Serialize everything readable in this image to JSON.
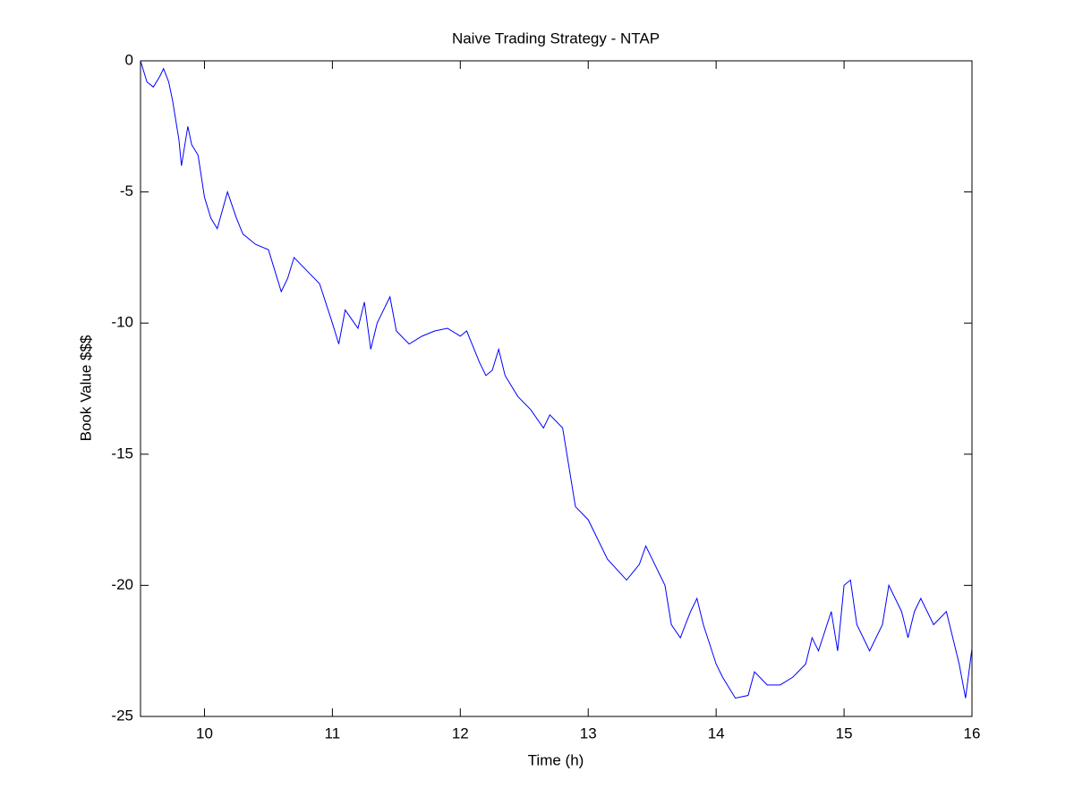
{
  "chart_data": {
    "type": "line",
    "title": "Naive Trading Strategy - NTAP",
    "x_label": "Time (h)",
    "y_label": "Book Value $$$",
    "xlim": [
      9.5,
      16
    ],
    "ylim": [
      -25,
      0
    ],
    "xticks": [
      10,
      11,
      12,
      13,
      14,
      15,
      16
    ],
    "yticks": [
      -25,
      -20,
      -15,
      -10,
      -5,
      0
    ],
    "grid": false,
    "series": [
      {
        "name": "NTAP",
        "color": "#0000ff",
        "x": [
          9.5,
          9.55,
          9.6,
          9.65,
          9.68,
          9.72,
          9.75,
          9.8,
          9.82,
          9.87,
          9.9,
          9.95,
          10.0,
          10.05,
          10.1,
          10.18,
          10.25,
          10.3,
          10.4,
          10.5,
          10.55,
          10.6,
          10.65,
          10.7,
          10.8,
          10.9,
          11.0,
          11.05,
          11.1,
          11.2,
          11.25,
          11.3,
          11.35,
          11.45,
          11.5,
          11.6,
          11.7,
          11.8,
          11.9,
          12.0,
          12.05,
          12.15,
          12.2,
          12.25,
          12.3,
          12.35,
          12.45,
          12.55,
          12.65,
          12.7,
          12.8,
          12.85,
          12.9,
          13.0,
          13.05,
          13.15,
          13.3,
          13.4,
          13.45,
          13.55,
          13.6,
          13.65,
          13.72,
          13.8,
          13.85,
          13.9,
          14.0,
          14.05,
          14.15,
          14.25,
          14.3,
          14.4,
          14.5,
          14.6,
          14.7,
          14.75,
          14.8,
          14.9,
          14.95,
          15.0,
          15.05,
          15.1,
          15.2,
          15.3,
          15.35,
          15.45,
          15.5,
          15.55,
          15.6,
          15.7,
          15.8,
          15.85,
          15.9,
          15.95,
          16.0
        ],
        "values": [
          0,
          -0.8,
          -1.0,
          -0.6,
          -0.3,
          -0.8,
          -1.5,
          -3.0,
          -4.0,
          -2.5,
          -3.2,
          -3.6,
          -5.2,
          -6.0,
          -6.4,
          -5.0,
          -6.0,
          -6.6,
          -7.0,
          -7.2,
          -8.0,
          -8.8,
          -8.3,
          -7.5,
          -8.0,
          -8.5,
          -10.0,
          -10.8,
          -9.5,
          -10.2,
          -9.2,
          -11.0,
          -10.0,
          -9.0,
          -10.3,
          -10.8,
          -10.5,
          -10.3,
          -10.2,
          -10.5,
          -10.3,
          -11.5,
          -12.0,
          -11.8,
          -11.0,
          -12.0,
          -12.8,
          -13.3,
          -14.0,
          -13.5,
          -14.0,
          -15.5,
          -17.0,
          -17.5,
          -18.0,
          -19.0,
          -19.8,
          -19.2,
          -18.5,
          -19.5,
          -20.0,
          -21.5,
          -22.0,
          -21.0,
          -20.5,
          -21.5,
          -23.0,
          -23.5,
          -24.3,
          -24.2,
          -23.3,
          -23.8,
          -23.8,
          -23.5,
          -23.0,
          -22.0,
          -22.5,
          -21.0,
          -22.5,
          -20.0,
          -19.8,
          -21.5,
          -22.5,
          -21.5,
          -20.0,
          -21.0,
          -22.0,
          -21.0,
          -20.5,
          -21.5,
          -21.0,
          -22.0,
          -23.0,
          -24.3,
          -22.4
        ]
      }
    ]
  }
}
